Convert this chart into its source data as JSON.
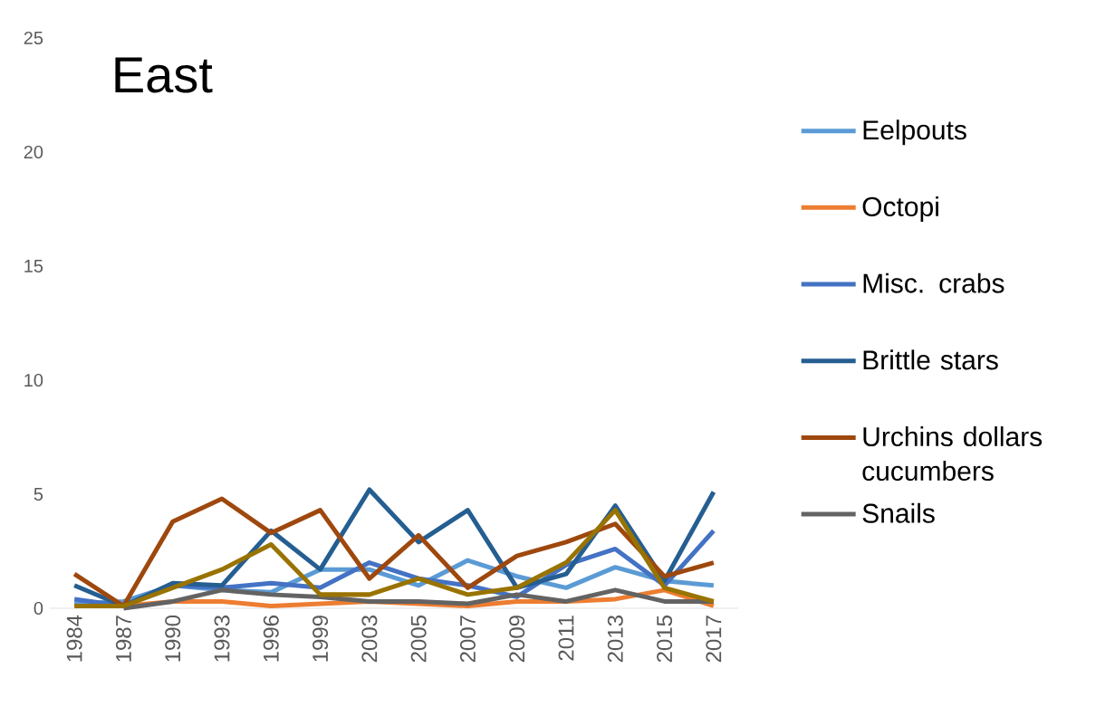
{
  "chart_data": {
    "type": "line",
    "title": "East",
    "categories": [
      "1984",
      "1987",
      "1990",
      "1993",
      "1996",
      "1999",
      "2003",
      "2005",
      "2007",
      "2009",
      "2011",
      "2013",
      "2015",
      "2017"
    ],
    "series": [
      {
        "name": "Eelpouts",
        "color": "#5b9bd5",
        "values": [
          0.2,
          0.3,
          1.0,
          0.8,
          0.7,
          1.7,
          1.7,
          1.0,
          2.1,
          1.4,
          0.9,
          1.8,
          1.2,
          1.0
        ]
      },
      {
        "name": "Octopi",
        "color": "#ed7d31",
        "values": [
          0.1,
          0.1,
          0.3,
          0.3,
          0.1,
          0.2,
          0.3,
          0.2,
          0.1,
          0.3,
          0.3,
          0.4,
          0.8,
          0.1
        ]
      },
      {
        "name": "Misc. crabs",
        "color": "#4472c4",
        "values": [
          0.4,
          0.1,
          1.0,
          0.9,
          1.1,
          0.9,
          2.0,
          1.3,
          1.0,
          0.5,
          1.9,
          2.6,
          1.0,
          3.4
        ]
      },
      {
        "name": "Brittle stars",
        "color": "#255e91",
        "values": [
          1.0,
          0.1,
          1.1,
          1.0,
          3.4,
          1.7,
          5.2,
          2.9,
          4.3,
          0.9,
          1.5,
          4.5,
          1.2,
          5.1
        ]
      },
      {
        "name": "Urchins dollars cucumbers",
        "color": "#9e480e",
        "values": [
          1.5,
          0.1,
          3.8,
          4.8,
          3.3,
          4.3,
          1.3,
          3.2,
          0.9,
          2.3,
          2.9,
          3.7,
          1.4,
          2.0
        ]
      },
      {
        "name": "Snails",
        "color": "#636363",
        "values": [
          null,
          0.0,
          0.3,
          0.8,
          0.6,
          0.5,
          0.3,
          0.3,
          0.2,
          0.6,
          0.3,
          0.8,
          0.3,
          0.3
        ]
      },
      {
        "color": "#997300",
        "values": [
          0.1,
          0.1,
          0.9,
          1.7,
          2.8,
          0.6,
          0.6,
          1.3,
          0.6,
          0.9,
          2.0,
          4.3,
          0.9,
          0.3
        ]
      }
    ],
    "ylim": [
      0,
      25
    ],
    "yticks": [
      0,
      5,
      10,
      15,
      20,
      25
    ],
    "legend": "right",
    "marker": "none",
    "line_style": "solid"
  }
}
